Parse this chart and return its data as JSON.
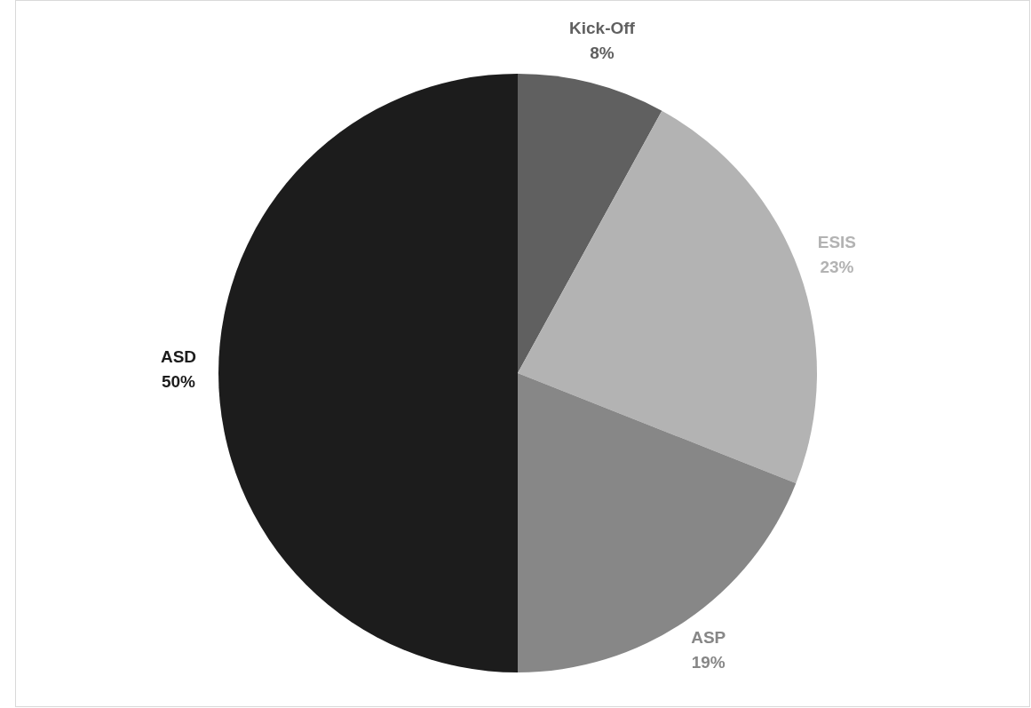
{
  "chart_data": {
    "type": "pie",
    "categories": [
      "Kick-Off",
      "ESIS",
      "ASP",
      "ASD"
    ],
    "values": [
      8,
      23,
      19,
      50
    ],
    "colors": [
      "#606060",
      "#b3b3b3",
      "#878787",
      "#1c1c1c"
    ],
    "value_labels": [
      "8%",
      "23%",
      "19%",
      "50%"
    ]
  }
}
